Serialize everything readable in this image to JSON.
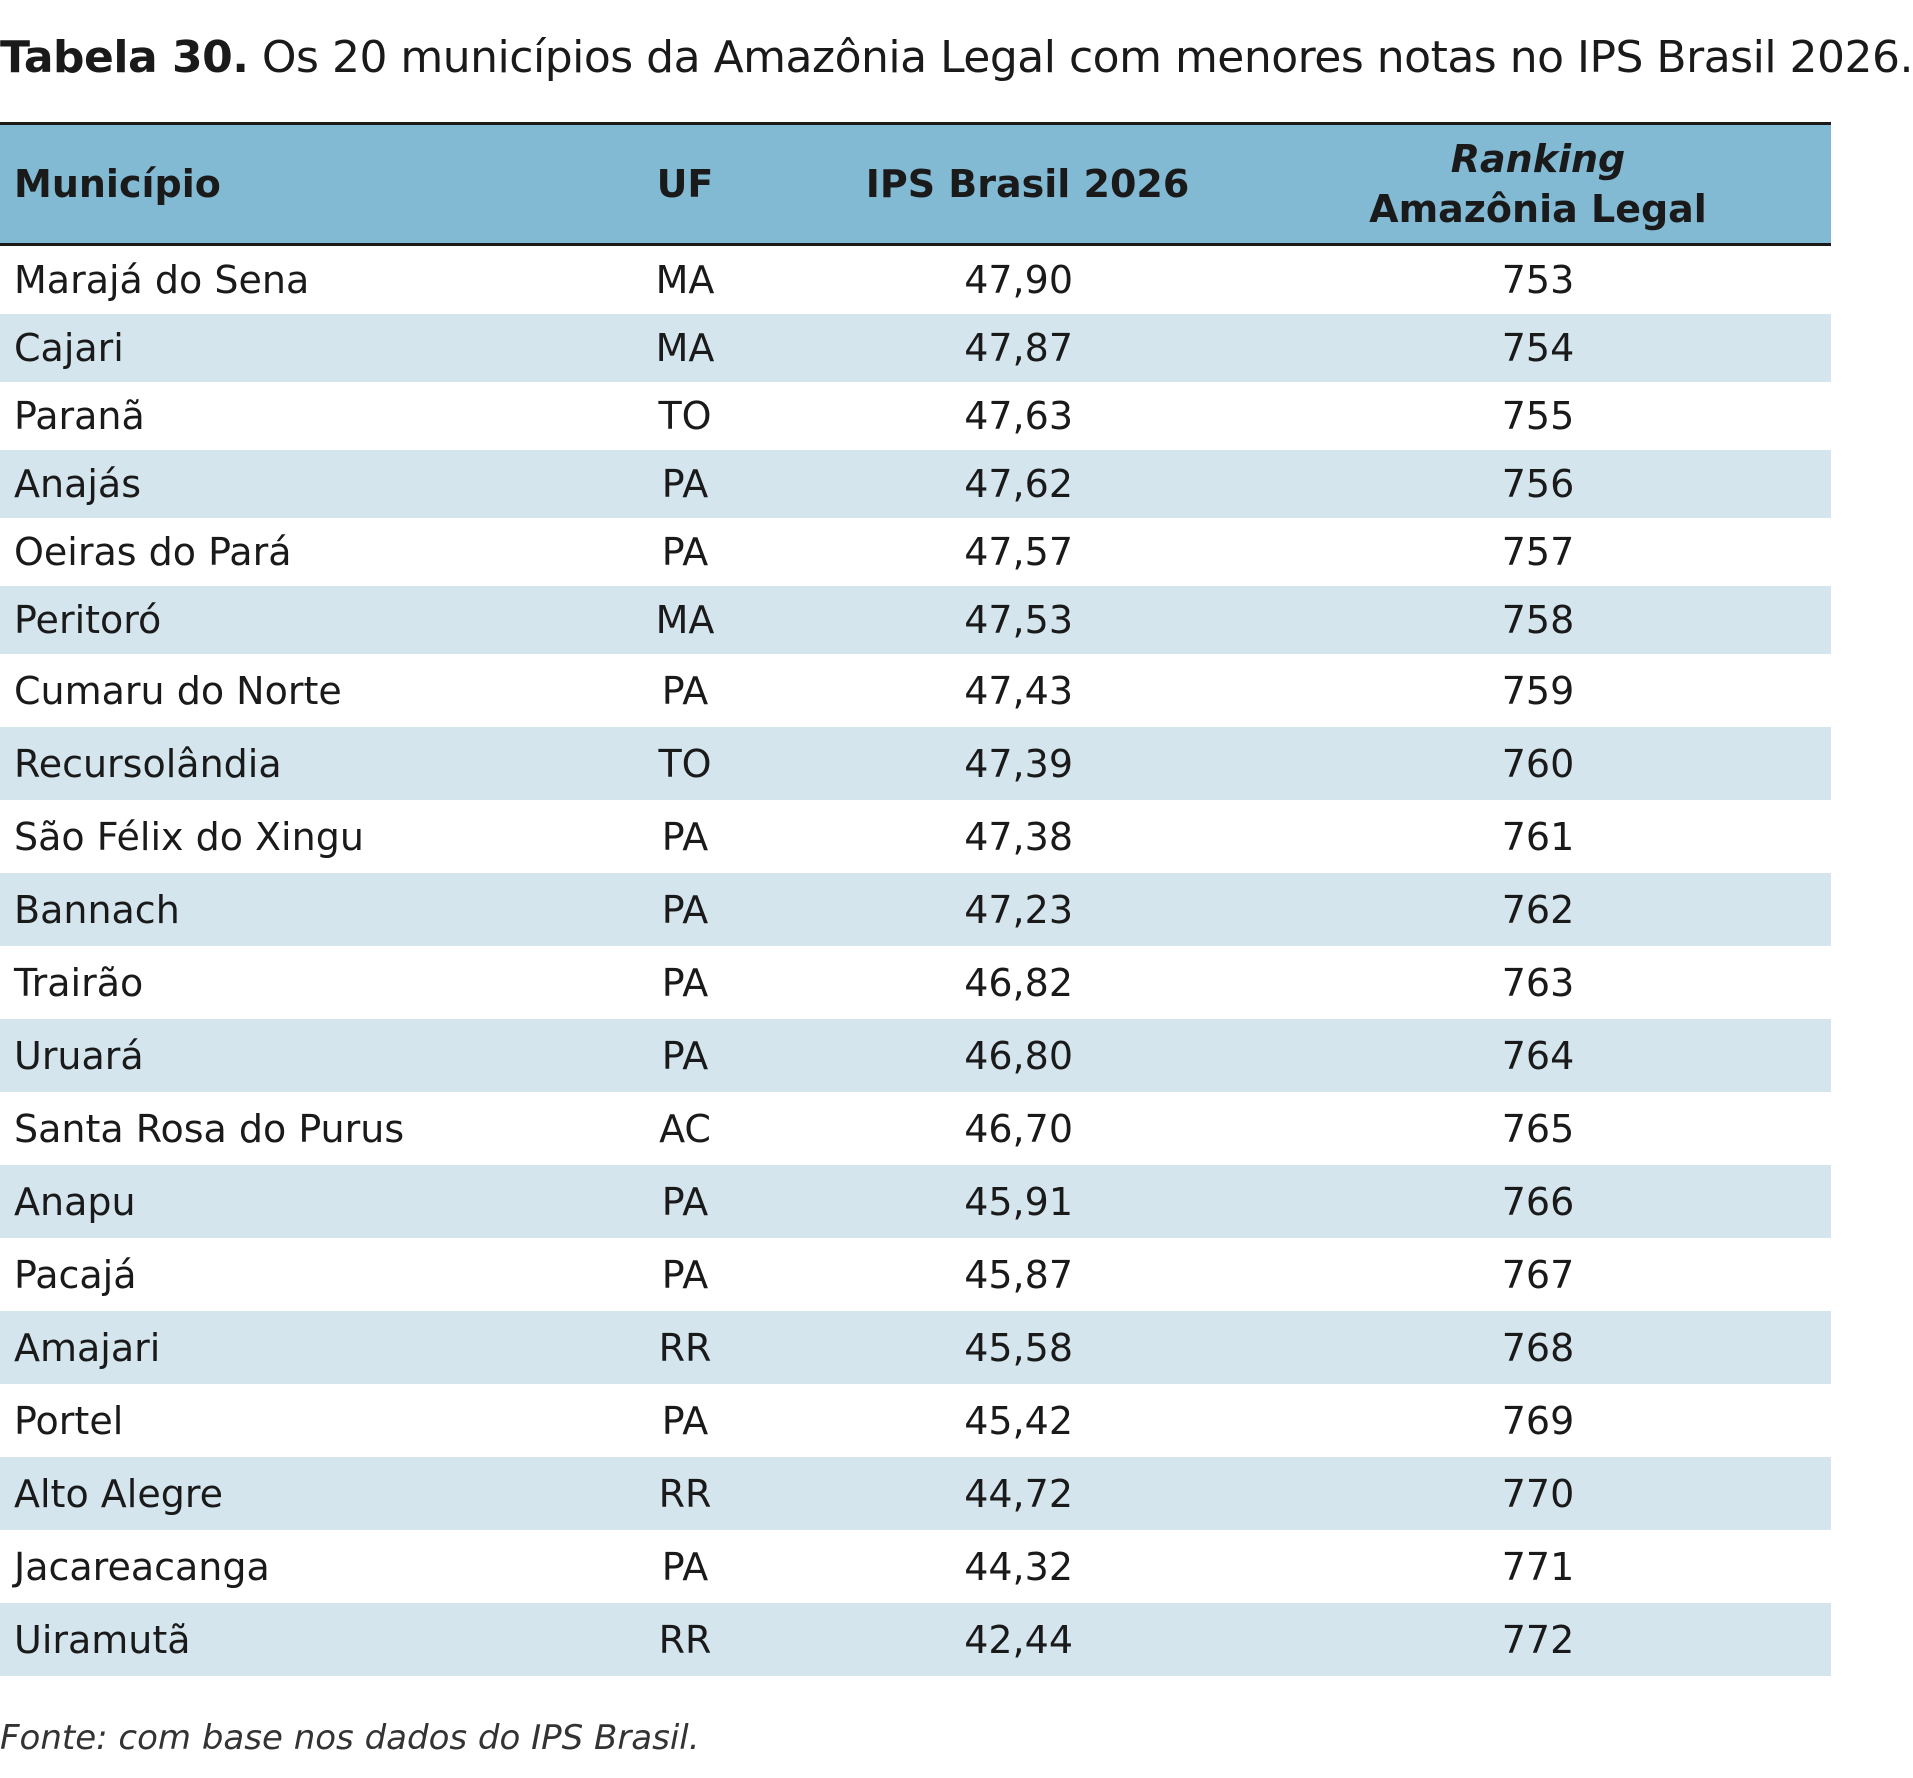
{
  "caption": {
    "label": "Tabela 30.",
    "text": " Os 20 municípios da Amazônia Legal com menores notas no IPS Brasil 2026."
  },
  "table": {
    "headers": {
      "municipio": "Município",
      "uf": "UF",
      "ips": "IPS Brasil 2026",
      "ranking_line1": "Ranking",
      "ranking_line2": "Amazônia Legal"
    },
    "rows": [
      {
        "municipio": "Marajá do Sena",
        "uf": "MA",
        "ips": "47,90",
        "ranking": "753"
      },
      {
        "municipio": "Cajari",
        "uf": "MA",
        "ips": "47,87",
        "ranking": "754"
      },
      {
        "municipio": "Paranã",
        "uf": "TO",
        "ips": "47,63",
        "ranking": "755"
      },
      {
        "municipio": "Anajás",
        "uf": "PA",
        "ips": "47,62",
        "ranking": "756"
      },
      {
        "municipio": "Oeiras do Pará",
        "uf": "PA",
        "ips": "47,57",
        "ranking": "757"
      },
      {
        "municipio": "Peritoró",
        "uf": "MA",
        "ips": "47,53",
        "ranking": "758"
      },
      {
        "municipio": "Cumaru do Norte",
        "uf": "PA",
        "ips": "47,43",
        "ranking": "759"
      },
      {
        "municipio": "Recursolândia",
        "uf": "TO",
        "ips": "47,39",
        "ranking": "760"
      },
      {
        "municipio": "São Félix do Xingu",
        "uf": "PA",
        "ips": "47,38",
        "ranking": "761"
      },
      {
        "municipio": "Bannach",
        "uf": "PA",
        "ips": "47,23",
        "ranking": "762"
      },
      {
        "municipio": "Trairão",
        "uf": "PA",
        "ips": "46,82",
        "ranking": "763"
      },
      {
        "municipio": "Uruará",
        "uf": "PA",
        "ips": "46,80",
        "ranking": "764"
      },
      {
        "municipio": "Santa Rosa do Purus",
        "uf": "AC",
        "ips": "46,70",
        "ranking": "765"
      },
      {
        "municipio": "Anapu",
        "uf": "PA",
        "ips": "45,91",
        "ranking": "766"
      },
      {
        "municipio": "Pacajá",
        "uf": "PA",
        "ips": "45,87",
        "ranking": "767"
      },
      {
        "municipio": "Amajari",
        "uf": "RR",
        "ips": "45,58",
        "ranking": "768"
      },
      {
        "municipio": "Portel",
        "uf": "PA",
        "ips": "45,42",
        "ranking": "769"
      },
      {
        "municipio": "Alto Alegre",
        "uf": "RR",
        "ips": "44,72",
        "ranking": "770"
      },
      {
        "municipio": "Jacareacanga",
        "uf": "PA",
        "ips": "44,32",
        "ranking": "771"
      },
      {
        "municipio": "Uiramutã",
        "uf": "RR",
        "ips": "42,44",
        "ranking": "772"
      }
    ]
  },
  "source": "Fonte: com base nos dados do IPS Brasil."
}
